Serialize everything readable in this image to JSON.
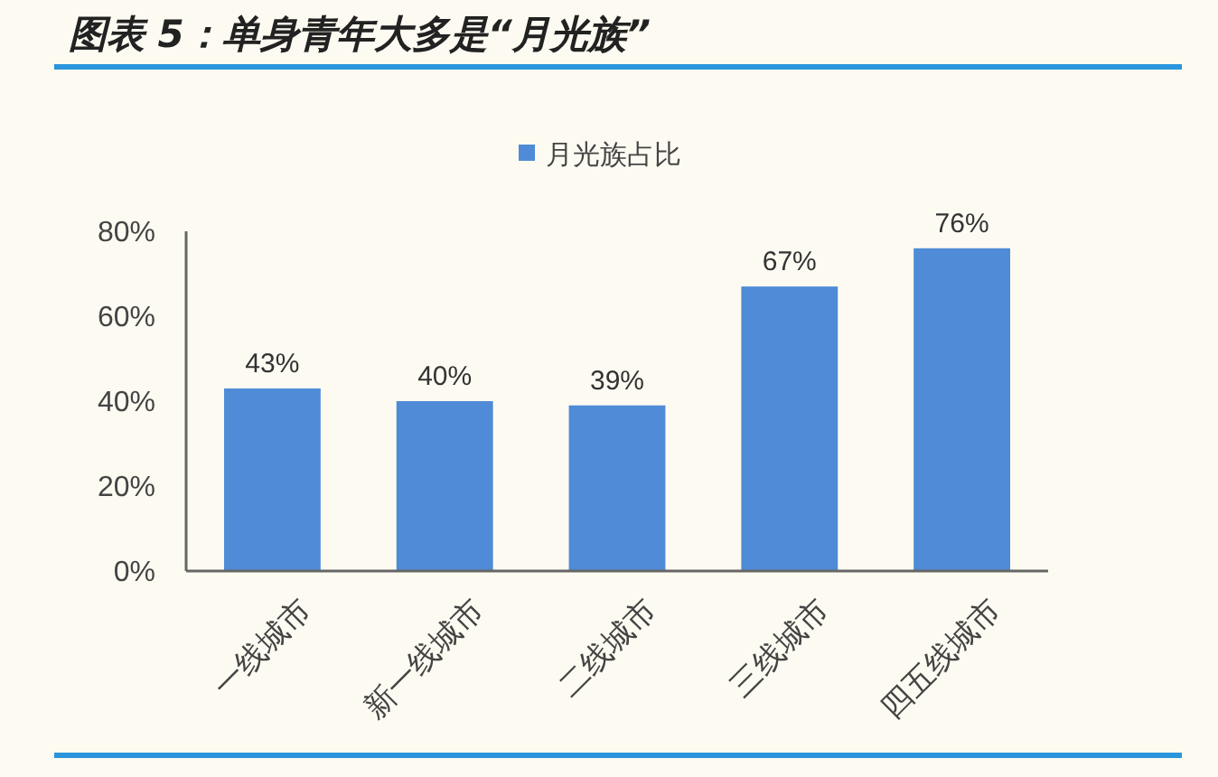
{
  "chart_data": {
    "type": "bar",
    "title": "图表 5：单身青年大多是“月光族”",
    "categories": [
      "一线城市",
      "新一线城市",
      "二线城市",
      "三线城市",
      "四五线城市"
    ],
    "series": [
      {
        "name": "月光族占比",
        "color": "#4f8bd6",
        "values": [
          43,
          40,
          39,
          67,
          76
        ],
        "value_labels": [
          "43%",
          "40%",
          "39%",
          "67%",
          "76%"
        ]
      }
    ],
    "ylim": [
      0,
      80
    ],
    "yticks": [
      {
        "value": 0,
        "label": "0%"
      },
      {
        "value": 20,
        "label": "20%"
      },
      {
        "value": 40,
        "label": "40%"
      },
      {
        "value": 60,
        "label": "60%"
      },
      {
        "value": 80,
        "label": "80%"
      }
    ],
    "legend": "top",
    "grid": false
  }
}
